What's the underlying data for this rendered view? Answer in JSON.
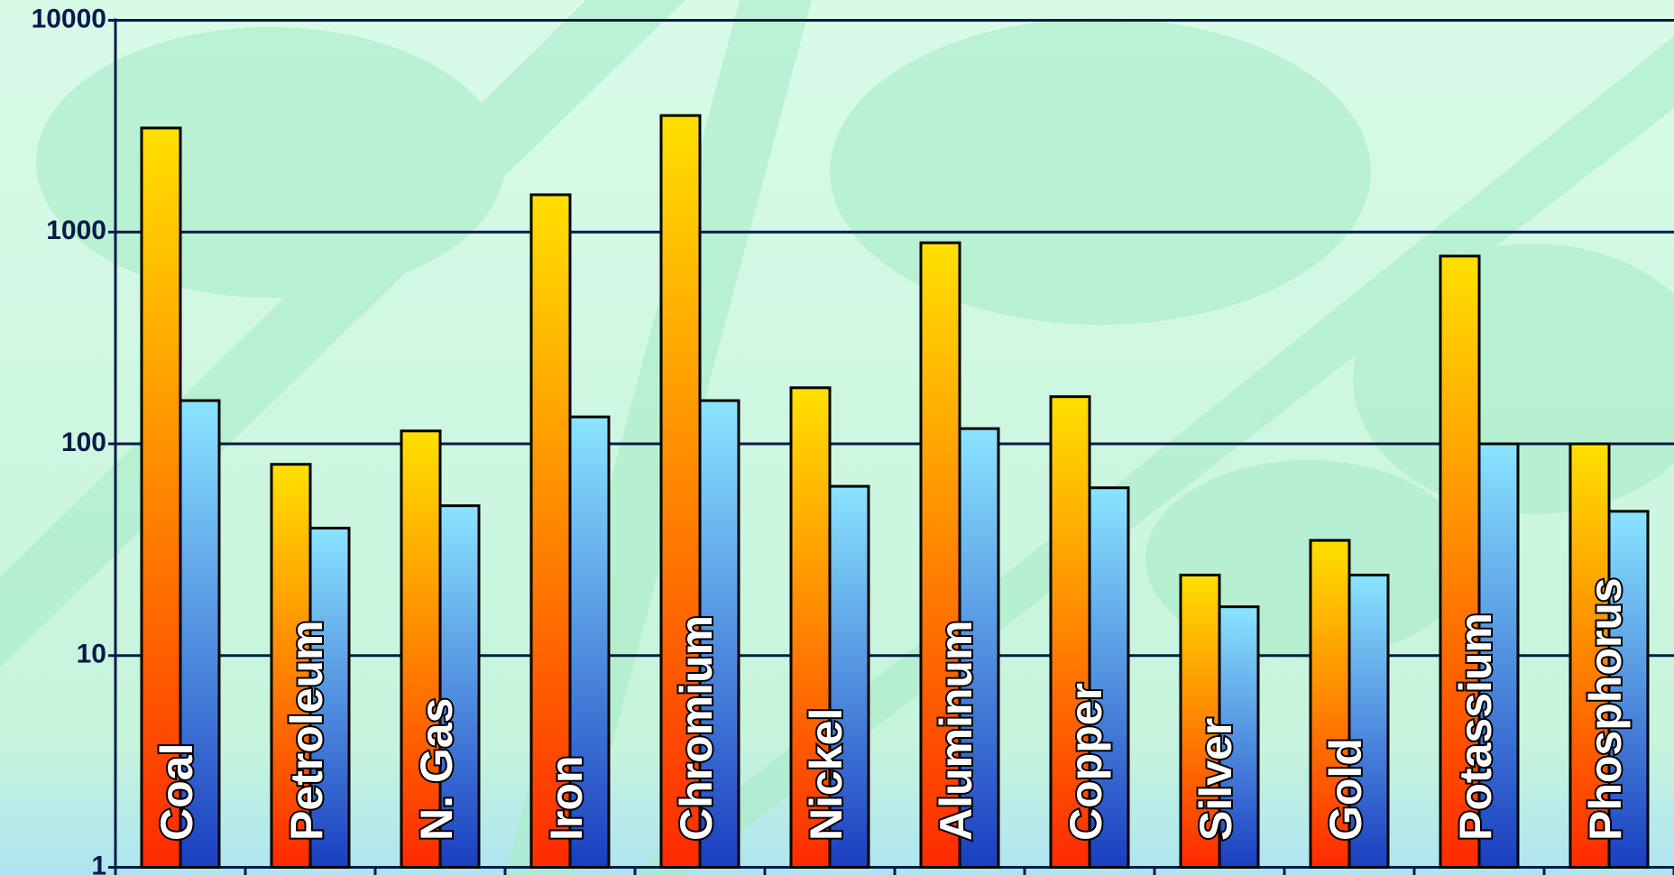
{
  "chart_data": {
    "type": "bar",
    "log_scale": true,
    "grid": true,
    "categories": [
      "Coal",
      "Petroleum",
      "N. Gas",
      "Iron",
      "Chromium",
      "Nickel",
      "Aluminum",
      "Copper",
      "Silver",
      "Gold",
      "Potassium",
      "Phosphorus"
    ],
    "series": [
      {
        "color": "#ffe000",
        "gradient": [
          "#ffe000",
          "#ff2a00"
        ],
        "values": [
          3100,
          80,
          115,
          1500,
          3550,
          184,
          890,
          167,
          24,
          35,
          770,
          100
        ]
      },
      {
        "color": "#80e0ff",
        "gradient": [
          "#8ae4ff",
          "#1a3ec0"
        ],
        "values": [
          160,
          40,
          51,
          134,
          160,
          63,
          118,
          62,
          17,
          24,
          100,
          48
        ]
      }
    ],
    "ylim": [
      1,
      10000
    ],
    "yticks": [
      1,
      10,
      100,
      1000,
      10000
    ]
  }
}
